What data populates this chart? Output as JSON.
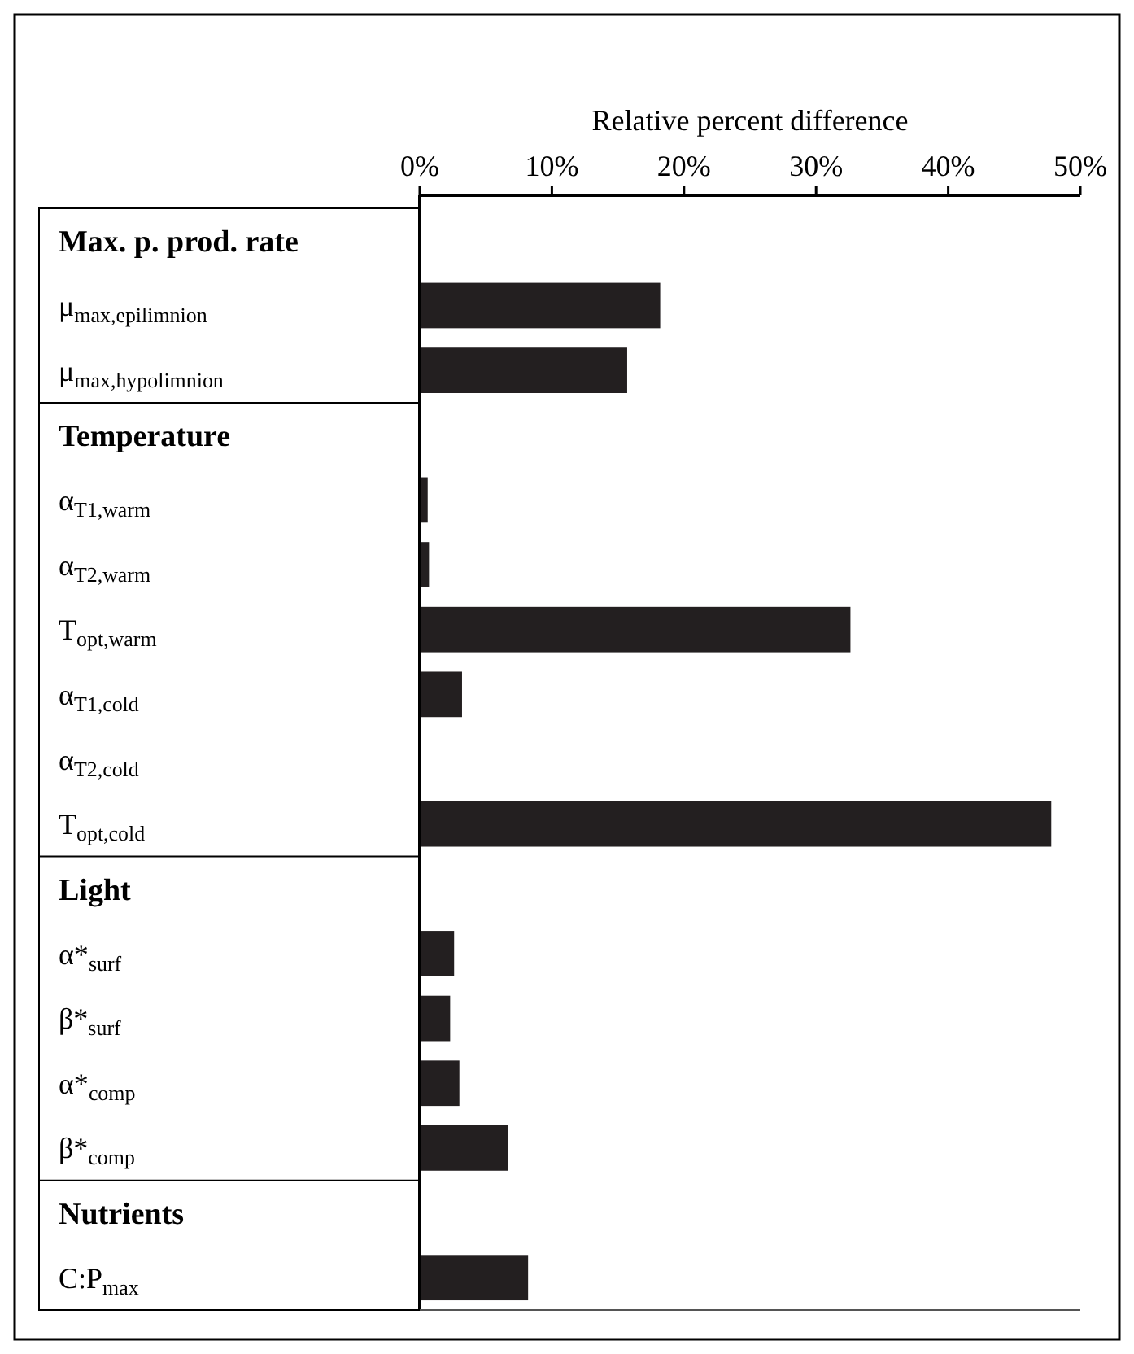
{
  "chart_data": {
    "type": "bar",
    "orientation": "horizontal",
    "xlabel": "Relative percent difference",
    "categories": [
      "Max. p. prod. rate",
      "μ$_{max,epilimnion}$",
      "μ$_{max,hypolimnion}$",
      "Temperature",
      "α$_{T1,warm}$",
      "α$_{T2,warm}$",
      "T$_{opt,warm}$",
      "α$_{T1,cold}$",
      "α$_{T2,cold}$",
      "T$_{opt,cold}$",
      "Light",
      "α*$_{surf}$",
      "β*$_{surf}$",
      "α*$_{comp}$",
      "β*$_{comp}$",
      "Nutrients",
      "C:P$_{max}$"
    ],
    "values": [
      null,
      18.2,
      15.7,
      null,
      0.6,
      0.7,
      32.6,
      3.2,
      0,
      47.8,
      null,
      2.6,
      2.3,
      3.0,
      6.7,
      null,
      8.2
    ],
    "color": "#231f20",
    "xlim": [
      0,
      50
    ],
    "xticks": [
      {
        "value": 0,
        "label": "0%"
      },
      {
        "value": 10,
        "label": "10%"
      },
      {
        "value": 20,
        "label": "20%"
      },
      {
        "value": 30,
        "label": "30%"
      },
      {
        "value": 40,
        "label": "40%"
      },
      {
        "value": 50,
        "label": "50%"
      }
    ],
    "grid": false
  }
}
